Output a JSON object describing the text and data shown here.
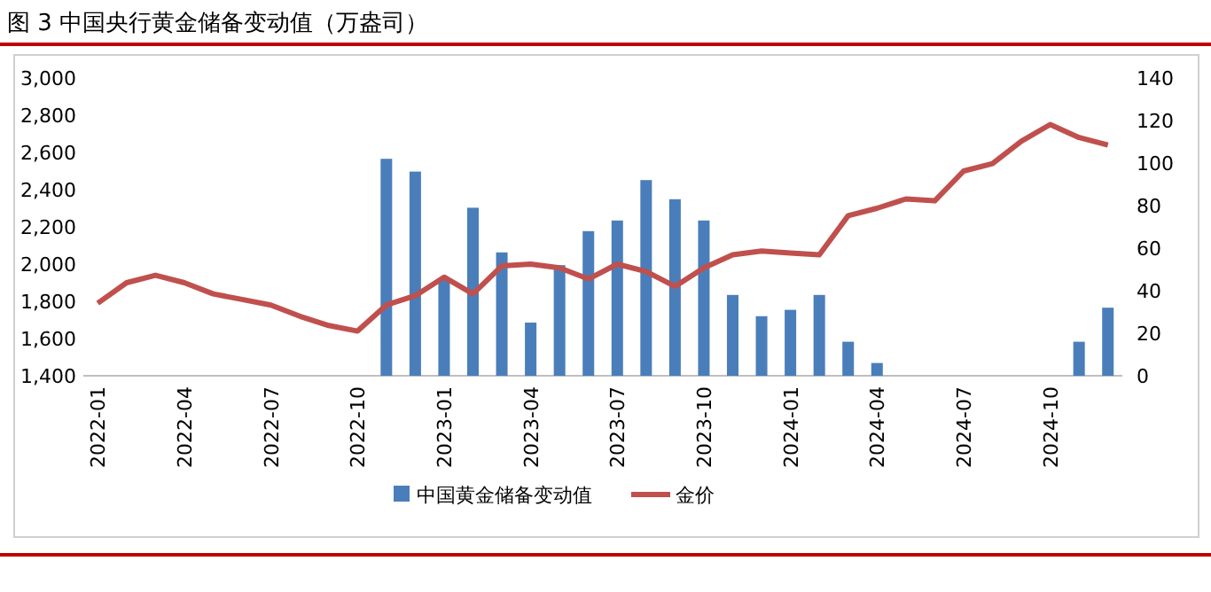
{
  "chart_data": {
    "type": "bar",
    "title": "图 3 中国央行黄金储备变动值（万盎司）",
    "categories": [
      "2022-01",
      null,
      null,
      "2022-04",
      null,
      null,
      "2022-07",
      null,
      null,
      "2022-10",
      null,
      null,
      "2023-01",
      null,
      null,
      "2023-04",
      null,
      null,
      "2023-07",
      null,
      null,
      "2023-10",
      null,
      null,
      "2024-01",
      null,
      null,
      "2024-04",
      null,
      null,
      "2024-07",
      null,
      null,
      "2024-10",
      null,
      null
    ],
    "series": [
      {
        "name": "中国黄金储备变动值",
        "axis": "y2",
        "color": "#4a7ebb",
        "values": [
          0,
          0,
          0,
          0,
          0,
          0,
          0,
          0,
          0,
          0,
          102,
          96,
          46,
          79,
          58,
          25,
          52,
          68,
          73,
          92,
          83,
          73,
          38,
          28,
          31,
          38,
          16,
          6,
          0,
          0,
          0,
          0,
          0,
          0,
          16,
          32
        ]
      },
      {
        "name": "金价",
        "type": "line",
        "color": "#c0504d",
        "values": [
          1790,
          1900,
          1940,
          1900,
          1840,
          1810,
          1780,
          1720,
          1670,
          1640,
          1780,
          1830,
          1930,
          1840,
          1990,
          2000,
          1980,
          1920,
          2000,
          1960,
          1880,
          1980,
          2050,
          2070,
          2060,
          2050,
          2260,
          2300,
          2350,
          2340,
          2500,
          2540,
          2660,
          2750,
          2680,
          2640
        ]
      }
    ],
    "ylim": [
      1400,
      3000
    ],
    "yticks": [
      {
        "value": 1400,
        "label": "1,400"
      },
      {
        "value": 1600,
        "label": "1,600"
      },
      {
        "value": 1800,
        "label": "1,800"
      },
      {
        "value": 2000,
        "label": "2,000"
      },
      {
        "value": 2200,
        "label": "2,200"
      },
      {
        "value": 2400,
        "label": "2,400"
      },
      {
        "value": 2600,
        "label": "2,600"
      },
      {
        "value": 2800,
        "label": "2,800"
      },
      {
        "value": 3000,
        "label": "3,000"
      }
    ],
    "y2lim": [
      0,
      140
    ],
    "y2ticks": [
      0,
      20,
      40,
      60,
      80,
      100,
      120,
      140
    ],
    "legend": "bottom",
    "grid": false,
    "marker": "none",
    "line_style": "solid"
  }
}
